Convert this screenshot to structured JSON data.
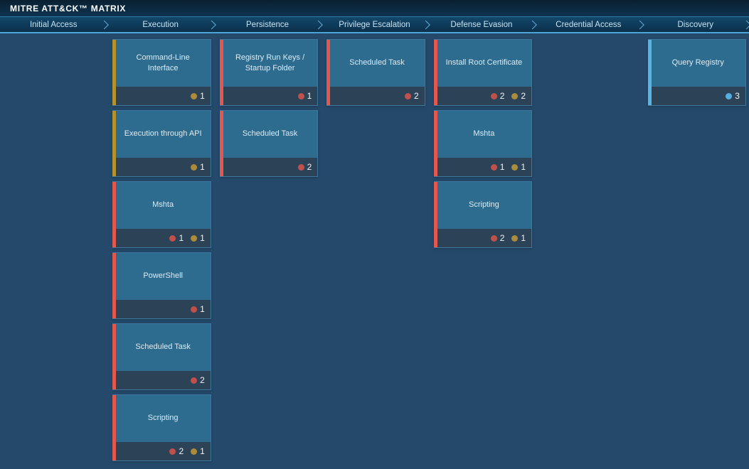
{
  "app": {
    "title": "MITRE ATT&CK™ MATRIX"
  },
  "palette": {
    "accent": {
      "yellow": "#b4912f",
      "red": "#e2574e",
      "blue": "#58b4e2"
    },
    "dot": {
      "yellow": "#ab8c3c",
      "red": "#c0504c",
      "blue": "#55aede"
    },
    "background": "#24496b",
    "card_body": "#2e6c8f",
    "card_footer": "#2c4257",
    "header_underline": "#4ba5d6"
  },
  "columns": [
    {
      "label": "Initial Access",
      "cards": []
    },
    {
      "label": "Execution",
      "cards": [
        {
          "title": "Command-Line Interface",
          "accent": "yellow",
          "counts": [
            {
              "color": "yellow",
              "value": "1"
            }
          ]
        },
        {
          "title": "Execution through API",
          "accent": "yellow",
          "counts": [
            {
              "color": "yellow",
              "value": "1"
            }
          ]
        },
        {
          "title": "Mshta",
          "accent": "red",
          "counts": [
            {
              "color": "red",
              "value": "1"
            },
            {
              "color": "yellow",
              "value": "1"
            }
          ]
        },
        {
          "title": "PowerShell",
          "accent": "red",
          "counts": [
            {
              "color": "red",
              "value": "1"
            }
          ]
        },
        {
          "title": "Scheduled Task",
          "accent": "red",
          "counts": [
            {
              "color": "red",
              "value": "2"
            }
          ]
        },
        {
          "title": "Scripting",
          "accent": "red",
          "counts": [
            {
              "color": "red",
              "value": "2"
            },
            {
              "color": "yellow",
              "value": "1"
            }
          ]
        }
      ]
    },
    {
      "label": "Persistence",
      "cards": [
        {
          "title": "Registry Run Keys / Startup Folder",
          "accent": "red",
          "counts": [
            {
              "color": "red",
              "value": "1"
            }
          ]
        },
        {
          "title": "Scheduled Task",
          "accent": "red",
          "counts": [
            {
              "color": "red",
              "value": "2"
            }
          ]
        }
      ]
    },
    {
      "label": "Privilege Escalation",
      "cards": [
        {
          "title": "Scheduled Task",
          "accent": "red",
          "counts": [
            {
              "color": "red",
              "value": "2"
            }
          ]
        }
      ]
    },
    {
      "label": "Defense Evasion",
      "cards": [
        {
          "title": "Install Root Certificate",
          "accent": "red",
          "counts": [
            {
              "color": "red",
              "value": "2"
            },
            {
              "color": "yellow",
              "value": "2"
            }
          ]
        },
        {
          "title": "Mshta",
          "accent": "red",
          "counts": [
            {
              "color": "red",
              "value": "1"
            },
            {
              "color": "yellow",
              "value": "1"
            }
          ]
        },
        {
          "title": "Scripting",
          "accent": "red",
          "counts": [
            {
              "color": "red",
              "value": "2"
            },
            {
              "color": "yellow",
              "value": "1"
            }
          ]
        }
      ]
    },
    {
      "label": "Credential Access",
      "cards": []
    },
    {
      "label": "Discovery",
      "cards": [
        {
          "title": "Query Registry",
          "accent": "blue",
          "counts": [
            {
              "color": "blue",
              "value": "3"
            }
          ]
        }
      ]
    }
  ]
}
